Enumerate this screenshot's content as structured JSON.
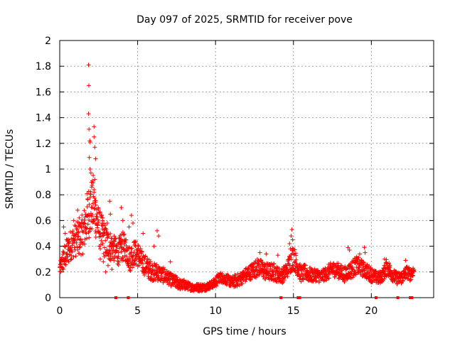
{
  "chart_data": {
    "type": "scatter",
    "title": "Day 097 of 2025, SRMTID for receiver pove",
    "xlabel": "GPS time / hours",
    "ylabel": "SRMTID / TECUs",
    "xlim": [
      0,
      24
    ],
    "ylim": [
      0,
      2
    ],
    "xticks": [
      0,
      5,
      10,
      15,
      20
    ],
    "yticks": [
      0,
      0.2,
      0.4,
      0.6,
      0.8,
      1,
      1.2,
      1.4,
      1.6,
      1.8,
      2
    ],
    "xtick_labels": [
      "0",
      "5",
      "10",
      "15",
      "20"
    ],
    "ytick_labels": [
      "0",
      "0.2",
      "0.4",
      "0.6",
      "0.8",
      "1",
      "1.2",
      "1.4",
      "1.6",
      "1.8",
      "2"
    ],
    "grid": true,
    "marker_color": "#ff0000",
    "grid_color": "#a0a0a0",
    "envelope": {
      "x": [
        0.0,
        0.25,
        0.5,
        0.75,
        1.0,
        1.25,
        1.5,
        1.75,
        2.0,
        2.25,
        2.5,
        2.75,
        3.0,
        3.25,
        3.5,
        3.75,
        4.0,
        4.25,
        4.5,
        4.75,
        5.0,
        5.25,
        5.5,
        5.75,
        6.0,
        6.25,
        6.5,
        6.75,
        7.0,
        7.25,
        7.5,
        7.75,
        8.0,
        8.25,
        8.5,
        8.75,
        9.0,
        9.25,
        9.5,
        9.75,
        10.0,
        10.25,
        10.5,
        10.75,
        11.0,
        11.25,
        11.5,
        11.75,
        12.0,
        12.25,
        12.5,
        12.75,
        13.0,
        13.25,
        13.5,
        13.75,
        14.0,
        14.25,
        14.5,
        14.75,
        15.0,
        15.25,
        15.5,
        15.75,
        16.0,
        16.25,
        16.5,
        16.75,
        17.0,
        17.25,
        17.5,
        17.75,
        18.0,
        18.25,
        18.5,
        18.75,
        19.0,
        19.25,
        19.5,
        19.75,
        20.0,
        20.25,
        20.5,
        20.75,
        21.0,
        21.25,
        21.5,
        21.75,
        22.0,
        22.25,
        22.5,
        22.75
      ],
      "y": [
        0.22,
        0.3,
        0.36,
        0.42,
        0.45,
        0.46,
        0.5,
        0.62,
        0.72,
        0.68,
        0.55,
        0.48,
        0.42,
        0.4,
        0.38,
        0.35,
        0.4,
        0.38,
        0.3,
        0.35,
        0.34,
        0.28,
        0.25,
        0.22,
        0.2,
        0.2,
        0.18,
        0.17,
        0.15,
        0.13,
        0.12,
        0.1,
        0.1,
        0.09,
        0.08,
        0.08,
        0.08,
        0.08,
        0.09,
        0.1,
        0.12,
        0.16,
        0.15,
        0.14,
        0.12,
        0.13,
        0.14,
        0.16,
        0.18,
        0.2,
        0.22,
        0.24,
        0.22,
        0.2,
        0.2,
        0.2,
        0.18,
        0.17,
        0.2,
        0.26,
        0.32,
        0.24,
        0.18,
        0.2,
        0.18,
        0.17,
        0.18,
        0.16,
        0.18,
        0.2,
        0.22,
        0.22,
        0.2,
        0.18,
        0.2,
        0.22,
        0.25,
        0.24,
        0.22,
        0.2,
        0.18,
        0.16,
        0.15,
        0.18,
        0.24,
        0.2,
        0.16,
        0.15,
        0.16,
        0.2,
        0.18,
        0.22
      ],
      "spread": [
        0.05,
        0.1,
        0.12,
        0.12,
        0.13,
        0.14,
        0.16,
        0.2,
        0.22,
        0.2,
        0.15,
        0.15,
        0.13,
        0.12,
        0.1,
        0.1,
        0.12,
        0.1,
        0.1,
        0.1,
        0.1,
        0.09,
        0.08,
        0.08,
        0.07,
        0.07,
        0.06,
        0.06,
        0.05,
        0.05,
        0.05,
        0.04,
        0.04,
        0.03,
        0.03,
        0.03,
        0.03,
        0.03,
        0.03,
        0.03,
        0.04,
        0.04,
        0.04,
        0.04,
        0.04,
        0.05,
        0.05,
        0.05,
        0.06,
        0.06,
        0.07,
        0.07,
        0.07,
        0.07,
        0.07,
        0.07,
        0.06,
        0.06,
        0.06,
        0.08,
        0.1,
        0.07,
        0.06,
        0.06,
        0.06,
        0.05,
        0.05,
        0.05,
        0.05,
        0.06,
        0.06,
        0.06,
        0.06,
        0.06,
        0.06,
        0.07,
        0.07,
        0.07,
        0.06,
        0.06,
        0.06,
        0.05,
        0.05,
        0.05,
        0.07,
        0.06,
        0.05,
        0.05,
        0.05,
        0.05,
        0.05,
        0.04
      ]
    },
    "outliers": [
      {
        "x": 1.85,
        "y": 1.81
      },
      {
        "x": 1.87,
        "y": 1.65
      },
      {
        "x": 1.85,
        "y": 1.43
      },
      {
        "x": 1.88,
        "y": 1.31
      },
      {
        "x": 1.93,
        "y": 1.22
      },
      {
        "x": 1.95,
        "y": 1.21
      },
      {
        "x": 1.9,
        "y": 1.09
      },
      {
        "x": 2.2,
        "y": 1.33
      },
      {
        "x": 2.2,
        "y": 1.25
      },
      {
        "x": 2.25,
        "y": 1.17
      },
      {
        "x": 2.3,
        "y": 1.08
      },
      {
        "x": 1.95,
        "y": 1.0
      },
      {
        "x": 2.0,
        "y": 0.97
      },
      {
        "x": 2.15,
        "y": 0.95
      },
      {
        "x": 2.25,
        "y": 0.92
      },
      {
        "x": 2.05,
        "y": 0.86
      },
      {
        "x": 2.2,
        "y": 0.84
      },
      {
        "x": 1.95,
        "y": 0.78
      },
      {
        "x": 2.3,
        "y": 0.72
      },
      {
        "x": 2.1,
        "y": 0.7
      },
      {
        "x": 3.2,
        "y": 0.75
      },
      {
        "x": 3.25,
        "y": 0.65
      },
      {
        "x": 2.75,
        "y": 0.62
      },
      {
        "x": 3.05,
        "y": 0.58
      },
      {
        "x": 1.15,
        "y": 0.68
      },
      {
        "x": 1.25,
        "y": 0.62
      },
      {
        "x": 0.9,
        "y": 0.6
      },
      {
        "x": 3.95,
        "y": 0.7
      },
      {
        "x": 4.05,
        "y": 0.6
      },
      {
        "x": 4.6,
        "y": 0.64
      },
      {
        "x": 4.7,
        "y": 0.58
      },
      {
        "x": 4.45,
        "y": 0.55
      },
      {
        "x": 0.25,
        "y": 0.55
      },
      {
        "x": 0.35,
        "y": 0.5
      },
      {
        "x": 0.55,
        "y": 0.45
      },
      {
        "x": 5.35,
        "y": 0.5
      },
      {
        "x": 6.25,
        "y": 0.52
      },
      {
        "x": 6.35,
        "y": 0.48
      },
      {
        "x": 6.05,
        "y": 0.4
      },
      {
        "x": 14.9,
        "y": 0.53
      },
      {
        "x": 14.85,
        "y": 0.48
      },
      {
        "x": 14.95,
        "y": 0.45
      },
      {
        "x": 14.75,
        "y": 0.42
      },
      {
        "x": 14.8,
        "y": 0.38
      },
      {
        "x": 18.5,
        "y": 0.39
      },
      {
        "x": 18.6,
        "y": 0.37
      },
      {
        "x": 19.55,
        "y": 0.39
      },
      {
        "x": 19.6,
        "y": 0.35
      },
      {
        "x": 19.25,
        "y": 0.34
      },
      {
        "x": 12.85,
        "y": 0.35
      },
      {
        "x": 13.25,
        "y": 0.34
      },
      {
        "x": 14.0,
        "y": 0.33
      },
      {
        "x": 2.6,
        "y": 0.3
      },
      {
        "x": 2.8,
        "y": 0.28
      },
      {
        "x": 3.1,
        "y": 0.25
      },
      {
        "x": 2.95,
        "y": 0.2
      },
      {
        "x": 3.35,
        "y": 0.22
      },
      {
        "x": 20.85,
        "y": 0.3
      },
      {
        "x": 22.2,
        "y": 0.29
      },
      {
        "x": 7.1,
        "y": 0.28
      }
    ],
    "zero_markers": [
      3.6,
      4.4,
      14.2,
      15.3,
      15.4,
      20.3,
      21.7,
      22.5,
      22.6
    ]
  }
}
